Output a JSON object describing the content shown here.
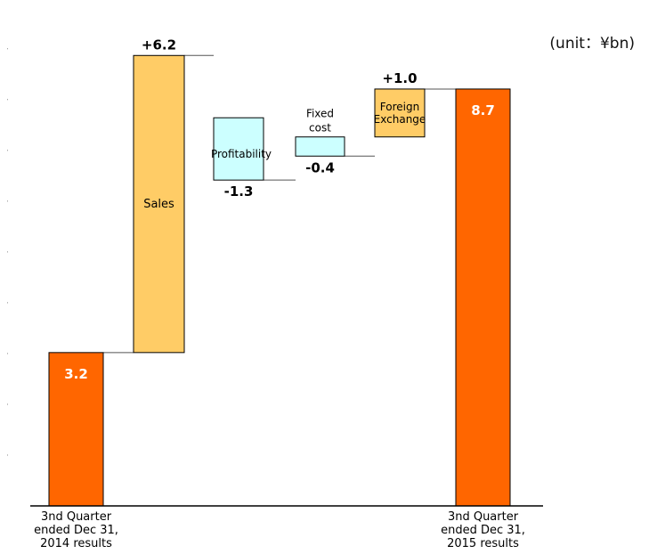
{
  "unit_label": "(unit：¥bn)",
  "chart_data": {
    "type": "waterfall",
    "title": "",
    "ylim": [
      0,
      10.06
    ],
    "colors": {
      "total": "#FF6600",
      "increase": "#FFCC66",
      "decrease": "#CCFFFF",
      "outline": "#000000"
    },
    "bars": [
      {
        "category": "3nd Quarter ended Dec 31, 2014 results",
        "category_lines": [
          "3nd Quarter",
          "ended Dec 31,",
          "2014 results"
        ],
        "bar_type": "total",
        "base": 0,
        "value": 3.2,
        "value_label": "3.2",
        "inner_label": ""
      },
      {
        "category": "Sales",
        "category_lines": [],
        "bar_type": "increase",
        "base": 3.2,
        "value": 6.2,
        "value_label": "+6.2",
        "inner_label": "Sales"
      },
      {
        "category": "Profitability",
        "category_lines": [],
        "bar_type": "decrease",
        "base": 8.1,
        "value": -1.3,
        "value_label": "-1.3",
        "inner_label": "Profitability"
      },
      {
        "category": "Fixed cost",
        "category_lines": [],
        "bar_type": "decrease",
        "base": 7.7,
        "value": -0.4,
        "value_label": "-0.4",
        "inner_label": "Fixed cost"
      },
      {
        "category": "Foreign Exchange",
        "category_lines": [],
        "bar_type": "increase",
        "base": 7.7,
        "value": 1.0,
        "value_label": "+1.0",
        "inner_label": "Foreign Exchange"
      },
      {
        "category": "3nd Quarter ended Dec 31, 2015 results",
        "category_lines": [
          "3nd Quarter",
          "ended Dec 31,",
          "2015 results"
        ],
        "bar_type": "total",
        "base": 0,
        "value": 8.7,
        "value_label": "8.7",
        "inner_label": ""
      }
    ]
  }
}
